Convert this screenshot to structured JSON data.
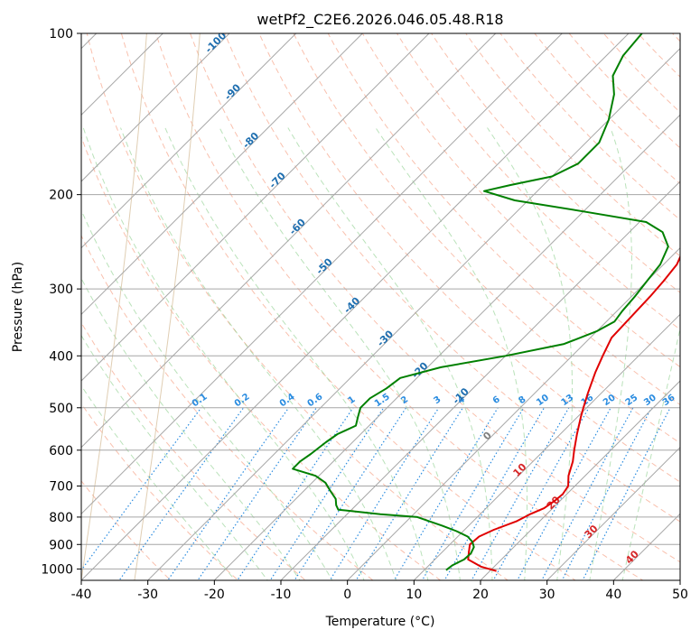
{
  "chart_data": {
    "type": "line",
    "subtype": "skew-t log-p diagram",
    "title": "wetPf2_C2E6.2026.046.05.48.R18",
    "xlabel": "Temperature (°C)",
    "ylabel": "Pressure (hPa)",
    "xlim": [
      -40,
      50
    ],
    "ylim": [
      1050,
      100
    ],
    "x_ticks": [
      -40,
      -30,
      -20,
      -10,
      0,
      10,
      20,
      30,
      40,
      50
    ],
    "y_ticks": [
      1000,
      900,
      800,
      700,
      600,
      500,
      400,
      300,
      200,
      100
    ],
    "grid": true,
    "series": [
      {
        "name": "Temperature",
        "color": "#e00000",
        "points": [
          [
            1009,
            21
          ],
          [
            990,
            18
          ],
          [
            960,
            15
          ],
          [
            930,
            14
          ],
          [
            900,
            13
          ],
          [
            870,
            13.2
          ],
          [
            845,
            14.4
          ],
          [
            815,
            16.5
          ],
          [
            790,
            17.5
          ],
          [
            770,
            18.7
          ],
          [
            745,
            19.2
          ],
          [
            725,
            19.4
          ],
          [
            700,
            19.0
          ],
          [
            670,
            17.5
          ],
          [
            630,
            16.0
          ],
          [
            600,
            14.5
          ],
          [
            560,
            12.5
          ],
          [
            520,
            10.5
          ],
          [
            500,
            9.5
          ],
          [
            470,
            8.0
          ],
          [
            430,
            6.0
          ],
          [
            400,
            4.6
          ],
          [
            370,
            3.2
          ],
          [
            340,
            3.0
          ],
          [
            310,
            2.8
          ],
          [
            290,
            2.5
          ],
          [
            270,
            2.0
          ],
          [
            250,
            0.5
          ],
          [
            230,
            -3.0
          ],
          [
            220,
            -3.5
          ],
          [
            205,
            -2.5
          ],
          [
            195,
            0.5
          ],
          [
            180,
            4.5
          ],
          [
            165,
            8.0
          ],
          [
            150,
            10.5
          ],
          [
            130,
            12.0
          ],
          [
            115,
            13.0
          ],
          [
            100,
            13.5
          ]
        ]
      },
      {
        "name": "Dewpoint",
        "color": "#008000",
        "points": [
          [
            1005,
            13.3
          ],
          [
            985,
            13.5
          ],
          [
            960,
            14.4
          ],
          [
            935,
            14.5
          ],
          [
            910,
            14.0
          ],
          [
            890,
            13.0
          ],
          [
            870,
            11.5
          ],
          [
            850,
            9.0
          ],
          [
            830,
            6.0
          ],
          [
            815,
            3.5
          ],
          [
            800,
            1.0
          ],
          [
            790,
            -5.0
          ],
          [
            775,
            -12.0
          ],
          [
            760,
            -13.0
          ],
          [
            740,
            -14.0
          ],
          [
            715,
            -16.0
          ],
          [
            690,
            -18.0
          ],
          [
            670,
            -20.5
          ],
          [
            650,
            -25.0
          ],
          [
            630,
            -25.0
          ],
          [
            610,
            -24.5
          ],
          [
            580,
            -24.0
          ],
          [
            560,
            -23.5
          ],
          [
            540,
            -22.0
          ],
          [
            520,
            -23.0
          ],
          [
            500,
            -24.0
          ],
          [
            480,
            -24.0
          ],
          [
            460,
            -23.0
          ],
          [
            440,
            -22.5
          ],
          [
            420,
            -18.0
          ],
          [
            400,
            -10.0
          ],
          [
            380,
            -3.0
          ],
          [
            360,
            0.0
          ],
          [
            345,
            1.2
          ],
          [
            330,
            0.8
          ],
          [
            310,
            0.5
          ],
          [
            290,
            0.0
          ],
          [
            270,
            -0.5
          ],
          [
            250,
            -2.0
          ],
          [
            235,
            -5.0
          ],
          [
            225,
            -9.0
          ],
          [
            215,
            -20.0
          ],
          [
            205,
            -32.0
          ],
          [
            197,
            -38.0
          ],
          [
            192,
            -35.0
          ],
          [
            185,
            -30.0
          ],
          [
            175,
            -28.0
          ],
          [
            160,
            -28.0
          ],
          [
            145,
            -30.0
          ],
          [
            130,
            -33.0
          ],
          [
            120,
            -36.0
          ],
          [
            110,
            -37.5
          ],
          [
            100,
            -38.0
          ]
        ]
      }
    ],
    "background_lines": {
      "dry_adiabat_labels": [
        "-100",
        "-90",
        "-80",
        "-70",
        "-60",
        "-50",
        "-40",
        "-30",
        "-20",
        "-10",
        "0",
        "10",
        "20",
        "30",
        "40"
      ],
      "mixing_ratio_labels": [
        "0.1",
        "0.2",
        "0.4",
        "0.6",
        "1",
        "1.5",
        "2",
        "3",
        "4",
        "6",
        "8",
        "10",
        "13",
        "16",
        "20",
        "25",
        "30",
        "36"
      ]
    }
  }
}
